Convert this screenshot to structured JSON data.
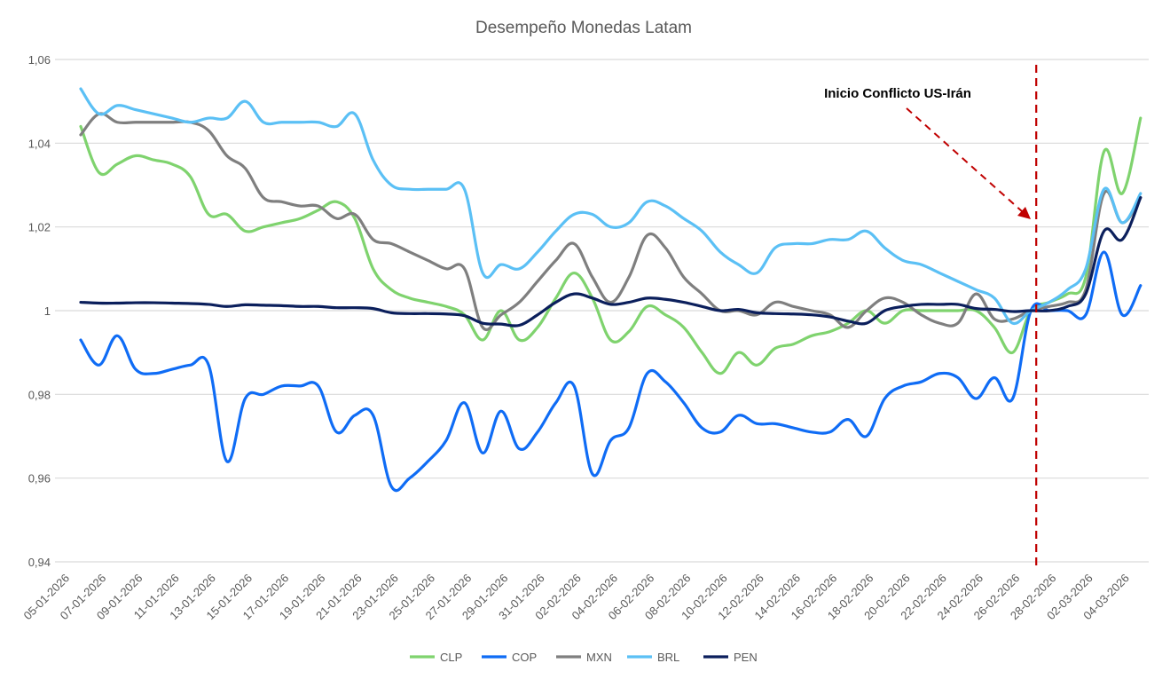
{
  "chart_data": {
    "type": "line",
    "title": "Desempeño Monedas Latam",
    "xlabel": "",
    "ylabel": "",
    "ylim": [
      0.94,
      1.06
    ],
    "yticks": [
      0.94,
      0.96,
      0.98,
      1.0,
      1.02,
      1.04,
      1.06
    ],
    "ytick_labels": [
      "0,94",
      "0,96",
      "0,98",
      "1",
      "1,02",
      "1,04",
      "1,06"
    ],
    "grid": "horizontal",
    "legend_position": "bottom",
    "x": [
      "05-01-2026",
      "06-01-2026",
      "07-01-2026",
      "08-01-2026",
      "09-01-2026",
      "10-01-2026",
      "11-01-2026",
      "12-01-2026",
      "13-01-2026",
      "14-01-2026",
      "15-01-2026",
      "16-01-2026",
      "17-01-2026",
      "18-01-2026",
      "19-01-2026",
      "20-01-2026",
      "21-01-2026",
      "22-01-2026",
      "23-01-2026",
      "24-01-2026",
      "25-01-2026",
      "26-01-2026",
      "27-01-2026",
      "28-01-2026",
      "29-01-2026",
      "30-01-2026",
      "31-01-2026",
      "01-02-2026",
      "02-02-2026",
      "03-02-2026",
      "04-02-2026",
      "05-02-2026",
      "06-02-2026",
      "07-02-2026",
      "08-02-2026",
      "09-02-2026",
      "10-02-2026",
      "11-02-2026",
      "12-02-2026",
      "13-02-2026",
      "14-02-2026",
      "15-02-2026",
      "16-02-2026",
      "17-02-2026",
      "18-02-2026",
      "19-02-2026",
      "20-02-2026",
      "21-02-2026",
      "22-02-2026",
      "23-02-2026",
      "24-02-2026",
      "25-02-2026",
      "26-02-2026",
      "27-02-2026",
      "28-02-2026",
      "01-03-2026",
      "02-03-2026",
      "03-03-2026",
      "04-03-2026"
    ],
    "x_tick_every": 2,
    "series": [
      {
        "name": "CLP",
        "color": "#7fd36e",
        "values": [
          1.044,
          1.033,
          1.035,
          1.037,
          1.036,
          1.035,
          1.032,
          1.023,
          1.023,
          1.019,
          1.02,
          1.021,
          1.022,
          1.024,
          1.026,
          1.022,
          1.01,
          1.005,
          1.003,
          1.002,
          1.001,
          0.999,
          0.993,
          1.0,
          0.993,
          0.996,
          1.003,
          1.009,
          1.003,
          0.993,
          0.995,
          1.001,
          0.999,
          0.996,
          0.99,
          0.985,
          0.99,
          0.987,
          0.991,
          0.992,
          0.994,
          0.995,
          0.997,
          1.0,
          0.997,
          1.0,
          1.0,
          1.0,
          1.0,
          1.0,
          0.996,
          0.99,
          1.0,
          1.002,
          1.004,
          1.008,
          1.038,
          1.028,
          1.046
        ]
      },
      {
        "name": "COP",
        "color": "#0f6cf5",
        "values": [
          0.993,
          0.987,
          0.994,
          0.986,
          0.985,
          0.986,
          0.987,
          0.987,
          0.964,
          0.979,
          0.98,
          0.982,
          0.982,
          0.982,
          0.971,
          0.975,
          0.975,
          0.958,
          0.96,
          0.964,
          0.969,
          0.978,
          0.966,
          0.976,
          0.967,
          0.971,
          0.978,
          0.982,
          0.961,
          0.969,
          0.972,
          0.985,
          0.983,
          0.978,
          0.972,
          0.971,
          0.975,
          0.973,
          0.973,
          0.972,
          0.971,
          0.971,
          0.974,
          0.97,
          0.979,
          0.982,
          0.983,
          0.985,
          0.984,
          0.979,
          0.984,
          0.979,
          1.0,
          1.0,
          1.0,
          0.999,
          1.014,
          0.999,
          1.006
        ]
      },
      {
        "name": "MXN",
        "color": "#7f7f7f",
        "values": [
          1.042,
          1.047,
          1.045,
          1.045,
          1.045,
          1.045,
          1.045,
          1.043,
          1.037,
          1.034,
          1.027,
          1.026,
          1.025,
          1.025,
          1.022,
          1.023,
          1.017,
          1.016,
          1.014,
          1.012,
          1.01,
          1.01,
          0.996,
          0.999,
          1.002,
          1.007,
          1.012,
          1.016,
          1.008,
          1.002,
          1.008,
          1.018,
          1.015,
          1.008,
          1.004,
          1.0,
          1.0,
          0.999,
          1.002,
          1.001,
          1.0,
          0.999,
          0.996,
          1.0,
          1.003,
          1.002,
          0.999,
          0.997,
          0.997,
          1.004,
          0.998,
          0.998,
          1.0,
          1.001,
          1.002,
          1.005,
          1.028,
          1.021,
          1.027
        ]
      },
      {
        "name": "BRL",
        "color": "#5bc0f5",
        "values": [
          1.053,
          1.047,
          1.049,
          1.048,
          1.047,
          1.046,
          1.045,
          1.046,
          1.046,
          1.05,
          1.045,
          1.045,
          1.045,
          1.045,
          1.044,
          1.047,
          1.036,
          1.03,
          1.029,
          1.029,
          1.029,
          1.029,
          1.009,
          1.011,
          1.01,
          1.014,
          1.019,
          1.023,
          1.023,
          1.02,
          1.021,
          1.026,
          1.025,
          1.022,
          1.019,
          1.014,
          1.011,
          1.009,
          1.015,
          1.016,
          1.016,
          1.017,
          1.017,
          1.019,
          1.015,
          1.012,
          1.011,
          1.009,
          1.007,
          1.005,
          1.003,
          0.997,
          1.0,
          1.002,
          1.005,
          1.01,
          1.029,
          1.021,
          1.028
        ]
      },
      {
        "name": "PEN",
        "color": "#0b1f5c",
        "values": [
          1.002,
          1.0018,
          1.0018,
          1.0019,
          1.0019,
          1.0018,
          1.0017,
          1.0015,
          1.001,
          1.0014,
          1.0013,
          1.0012,
          1.001,
          1.001,
          1.0007,
          1.0007,
          1.0005,
          0.9995,
          0.9993,
          0.9993,
          0.9992,
          0.9988,
          0.997,
          0.9968,
          0.9965,
          0.999,
          1.002,
          1.004,
          1.003,
          1.0015,
          1.002,
          1.003,
          1.0027,
          1.002,
          1.001,
          1.0,
          1.0003,
          0.9995,
          0.9993,
          0.9992,
          0.999,
          0.9985,
          0.9975,
          0.997,
          1.0,
          1.001,
          1.0015,
          1.0015,
          1.0015,
          1.0005,
          1.0003,
          0.9998,
          1.0,
          1.0,
          1.001,
          1.004,
          1.019,
          1.017,
          1.027
        ]
      }
    ],
    "annotations": [
      {
        "type": "vertical-line",
        "x": "26-02-2026",
        "style": "dashed",
        "color": "#c00000"
      },
      {
        "type": "text-arrow",
        "text": "Inicio Conflicto US-Irán",
        "color": "#c00000"
      }
    ]
  }
}
